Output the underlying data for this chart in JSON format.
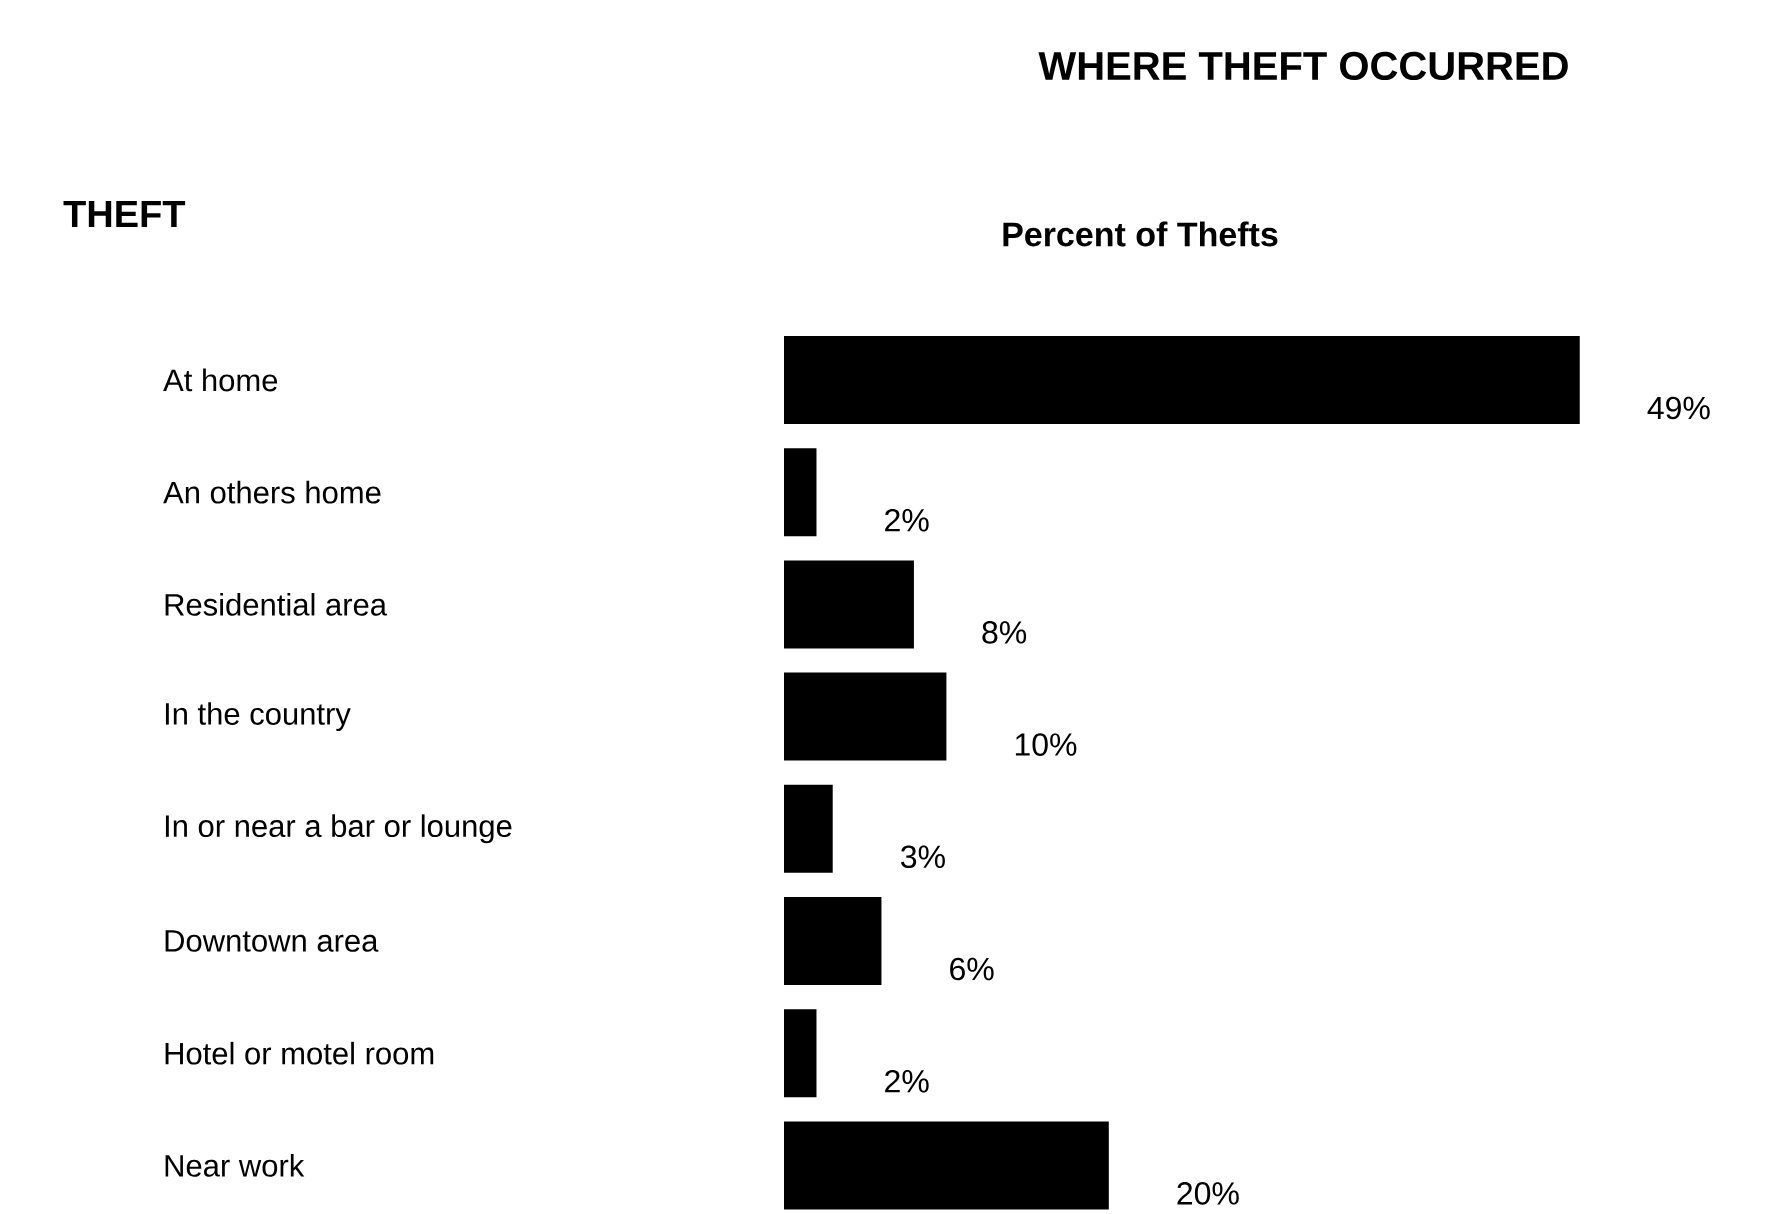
{
  "chart_data": {
    "type": "bar",
    "orientation": "horizontal",
    "title": "WHERE THEFT OCCURRED",
    "subtitle": "Percent of Thefts",
    "annotations": [
      "THEFT"
    ],
    "categories": [
      "At home",
      "An others home",
      "Residential area",
      "In the country",
      "In or near a bar or lounge",
      "Downtown area",
      "Hotel or motel room",
      "Near work"
    ],
    "values": [
      49,
      2,
      8,
      10,
      3,
      6,
      2,
      20
    ],
    "value_labels": [
      "49%",
      "2%",
      "8%",
      "10%",
      "3%",
      "6%",
      "2%",
      "20%"
    ],
    "color": "#000000"
  }
}
